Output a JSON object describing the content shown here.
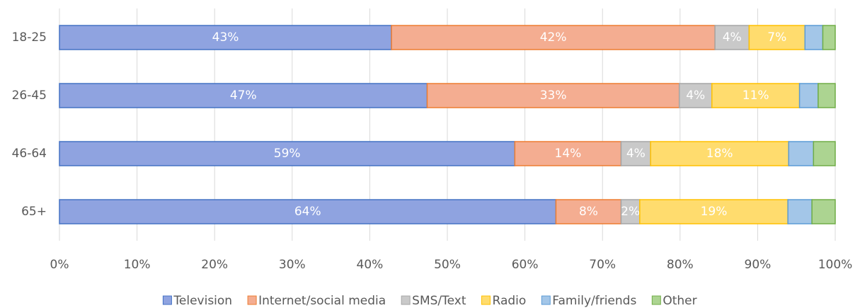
{
  "chart_data": {
    "type": "stacked_barh",
    "categories": [
      "18-25",
      "26-45",
      "46-64",
      "65+"
    ],
    "series": [
      {
        "name": "Television",
        "color": "#8fa3e0",
        "edge": "#4472c4",
        "values": [
          42.8,
          47.4,
          58.7,
          64.0
        ],
        "value_labels": [
          "43%",
          "47%",
          "59%",
          "64%"
        ]
      },
      {
        "name": "Internet/social media",
        "color": "#f4ad91",
        "edge": "#ed7d31",
        "values": [
          41.7,
          32.5,
          13.7,
          8.4
        ],
        "value_labels": [
          "42%",
          "33%",
          "14%",
          "8%"
        ]
      },
      {
        "name": "SMS/Text",
        "color": "#c9c9c9",
        "edge": "#a5a5a5",
        "values": [
          4.4,
          4.2,
          3.8,
          2.4
        ],
        "value_labels": [
          "4%",
          "4%",
          "4%",
          "2%"
        ]
      },
      {
        "name": "Radio",
        "color": "#ffdc6e",
        "edge": "#ffc000",
        "values": [
          7.2,
          11.3,
          17.8,
          19.1
        ],
        "value_labels": [
          "7%",
          "11%",
          "18%",
          "19%"
        ]
      },
      {
        "name": "Family/friends",
        "color": "#a3c6e8",
        "edge": "#5b9bd5",
        "values": [
          2.3,
          2.4,
          3.2,
          3.1
        ]
      },
      {
        "name": "Other",
        "color": "#acd491",
        "edge": "#70ad47",
        "values": [
          1.6,
          2.2,
          2.8,
          3.0
        ]
      }
    ],
    "xlim": [
      0,
      100
    ],
    "xticks": [
      {
        "value": 0,
        "label": "0%"
      },
      {
        "value": 10,
        "label": "10%"
      },
      {
        "value": 20,
        "label": "20%"
      },
      {
        "value": 30,
        "label": "30%"
      },
      {
        "value": 40,
        "label": "40%"
      },
      {
        "value": 50,
        "label": "50%"
      },
      {
        "value": 60,
        "label": "60%"
      },
      {
        "value": 70,
        "label": "70%"
      },
      {
        "value": 80,
        "label": "80%"
      },
      {
        "value": 90,
        "label": "90%"
      },
      {
        "value": 100,
        "label": "100%"
      }
    ],
    "grid": true,
    "legend": "bottom"
  }
}
